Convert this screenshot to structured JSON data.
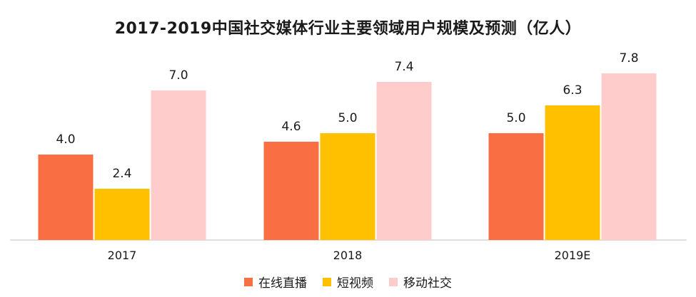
{
  "chart_data": {
    "type": "bar",
    "title": "2017-2019中国社交媒体行业主要领域用户规模及预测（亿人）",
    "categories": [
      "2017",
      "2018",
      "2019E"
    ],
    "series": [
      {
        "name": "在线直播",
        "values": [
          4.0,
          4.6,
          5.0
        ],
        "color": "#F96E43"
      },
      {
        "name": "短视频",
        "values": [
          2.4,
          5.0,
          6.3
        ],
        "color": "#FFC000"
      },
      {
        "name": "移动社交",
        "values": [
          7.0,
          7.4,
          7.8
        ],
        "color": "#FFCCCC"
      }
    ],
    "ylim": [
      0,
      8.5
    ],
    "grid": false,
    "legend_position": "bottom"
  }
}
